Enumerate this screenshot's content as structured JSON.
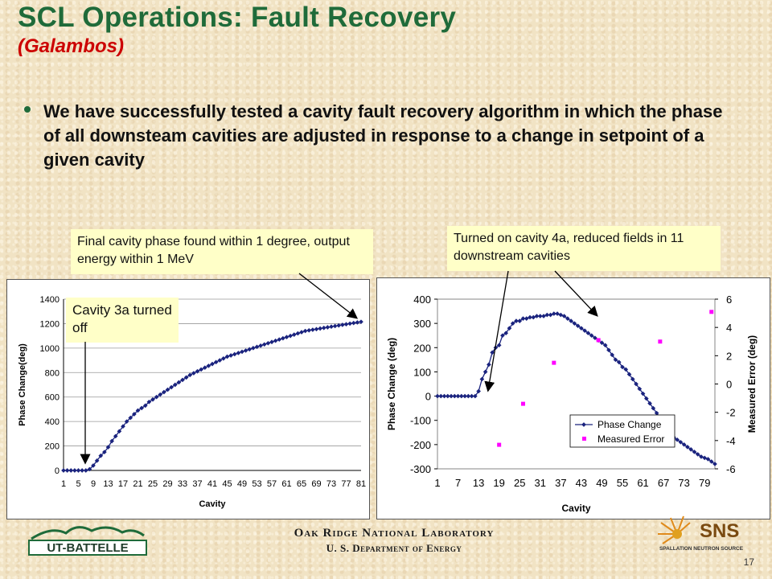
{
  "slide": {
    "title": "SCL Operations: Fault Recovery",
    "subtitle": "(Galambos)",
    "bullet": "We have successfully tested a cavity fault recovery algorithm in which the phase of all downsteam cavities are adjusted in response to a change in setpoint of a given cavity",
    "footer_lab": "Oak Ridge National Laboratory",
    "footer_dept": "U. S. Department of Energy",
    "page_number": "17",
    "logo_left_text": "UT-BATTELLE",
    "logo_right_text": "SNS",
    "logo_right_subtext": "SPALLATION NEUTRON SOURCE"
  },
  "callouts": {
    "left_top": "Final cavity phase found within 1 degree, output energy within 1 MeV",
    "right_top": "Turned on cavity 4a, reduced fields in 11 downstream cavities",
    "left_inner": "Cavity 3a turned off"
  },
  "colors": {
    "title": "#1f6b3a",
    "subtitle": "#cc0000",
    "series_line": "#1a237e",
    "series_error": "#ff00ff",
    "callout_bg": "#ffffc8"
  },
  "chart_data": [
    {
      "type": "line",
      "xlabel": "Cavity",
      "ylabel": "Phase Change(deg)",
      "ylim": [
        0,
        1400
      ],
      "yticks": [
        0,
        200,
        400,
        600,
        800,
        1000,
        1200,
        1400
      ],
      "xticks": [
        1,
        5,
        9,
        13,
        17,
        21,
        25,
        29,
        33,
        37,
        41,
        45,
        49,
        53,
        57,
        61,
        65,
        69,
        73,
        77,
        81
      ],
      "xlim": [
        1,
        81
      ],
      "grid": true,
      "series": [
        {
          "x": [
            1,
            2,
            3,
            4,
            5,
            6,
            7,
            8,
            9,
            10,
            11,
            12,
            13,
            14,
            15,
            16,
            17,
            18,
            19,
            20,
            21,
            22,
            23,
            24,
            25,
            26,
            27,
            28,
            29,
            30,
            31,
            32,
            33,
            34,
            35,
            36,
            37,
            38,
            39,
            40,
            41,
            42,
            43,
            44,
            45,
            46,
            47,
            48,
            49,
            50,
            51,
            52,
            53,
            54,
            55,
            56,
            57,
            58,
            59,
            60,
            61,
            62,
            63,
            64,
            65,
            66,
            67,
            68,
            69,
            70,
            71,
            72,
            73,
            74,
            75,
            76,
            77,
            78,
            79,
            80,
            81
          ],
          "values": [
            0,
            0,
            0,
            0,
            0,
            0,
            0,
            10,
            40,
            80,
            120,
            150,
            190,
            240,
            280,
            320,
            360,
            400,
            430,
            460,
            490,
            510,
            530,
            560,
            580,
            600,
            620,
            640,
            660,
            680,
            700,
            720,
            740,
            760,
            780,
            795,
            810,
            825,
            840,
            855,
            870,
            885,
            900,
            915,
            930,
            940,
            950,
            960,
            970,
            980,
            990,
            1000,
            1010,
            1020,
            1030,
            1040,
            1050,
            1060,
            1070,
            1080,
            1090,
            1100,
            1110,
            1120,
            1130,
            1140,
            1145,
            1150,
            1155,
            1160,
            1165,
            1170,
            1175,
            1180,
            1185,
            1190,
            1195,
            1200,
            1205,
            1210,
            1215
          ]
        }
      ]
    },
    {
      "type": "line",
      "xlabel": "Cavity",
      "ylabel": "Phase Change (deg)",
      "y2label": "Measured Error (deg)",
      "ylim": [
        -300,
        400
      ],
      "yticks": [
        -300,
        -200,
        -100,
        0,
        100,
        200,
        300,
        400
      ],
      "y2lim": [
        -6,
        6
      ],
      "y2ticks": [
        -6,
        -4,
        -2,
        0,
        2,
        4,
        6
      ],
      "xticks": [
        1,
        7,
        13,
        19,
        25,
        31,
        37,
        43,
        49,
        55,
        61,
        67,
        73,
        79
      ],
      "xlim": [
        1,
        82
      ],
      "legend": "bottom-right",
      "series": [
        {
          "name": "Phase Change",
          "x": [
            1,
            2,
            3,
            4,
            5,
            6,
            7,
            8,
            9,
            10,
            11,
            12,
            13,
            14,
            15,
            16,
            17,
            18,
            19,
            20,
            21,
            22,
            23,
            24,
            25,
            26,
            27,
            28,
            29,
            30,
            31,
            32,
            33,
            34,
            35,
            36,
            37,
            38,
            39,
            40,
            41,
            42,
            43,
            44,
            45,
            46,
            47,
            48,
            49,
            50,
            51,
            52,
            53,
            54,
            55,
            56,
            57,
            58,
            59,
            60,
            61,
            62,
            63,
            64,
            65,
            66,
            67,
            68,
            69,
            70,
            71,
            72,
            73,
            74,
            75,
            76,
            77,
            78,
            79,
            80,
            81,
            82
          ],
          "values": [
            0,
            0,
            0,
            0,
            0,
            0,
            0,
            0,
            0,
            0,
            0,
            0,
            20,
            70,
            100,
            130,
            180,
            200,
            210,
            250,
            260,
            280,
            300,
            310,
            310,
            320,
            320,
            325,
            325,
            330,
            330,
            330,
            335,
            335,
            340,
            340,
            335,
            330,
            320,
            310,
            300,
            290,
            280,
            270,
            260,
            250,
            240,
            230,
            220,
            210,
            190,
            170,
            150,
            140,
            120,
            110,
            90,
            70,
            50,
            30,
            10,
            -10,
            -30,
            -50,
            -70,
            -90,
            -110,
            -130,
            -150,
            -170,
            -180,
            -190,
            -200,
            -210,
            -220,
            -230,
            -240,
            -250,
            -255,
            -260,
            -270,
            -280
          ]
        },
        {
          "name": "Measured Error",
          "x": [
            19,
            26,
            35,
            48,
            66,
            81
          ],
          "values": [
            -4.3,
            -1.4,
            1.5,
            3.1,
            3.0,
            5.1
          ]
        }
      ]
    }
  ]
}
